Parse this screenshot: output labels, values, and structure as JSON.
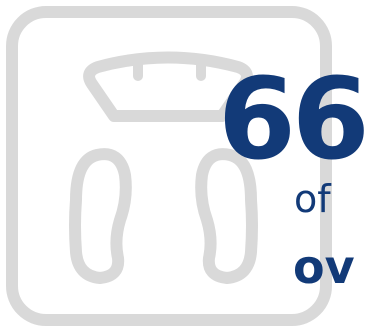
{
  "colors": {
    "accent": "#123a78",
    "icon_stroke": "#d9d9d9",
    "background": "#ffffff"
  },
  "icon": {
    "name": "bathroom-scale-icon"
  },
  "stat": {
    "number": "66",
    "of_text": "of",
    "word": "ov"
  }
}
